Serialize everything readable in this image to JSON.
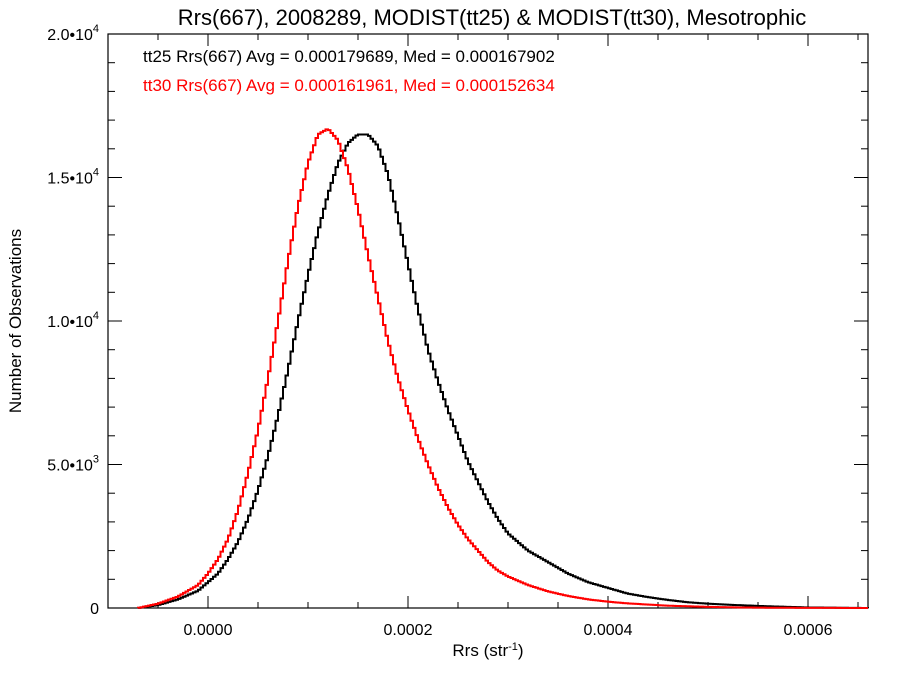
{
  "chart_data": {
    "type": "line",
    "title": "Rrs(667), 2008289, MODIST(tt25) & MODIST(tt30), Mesotrophic",
    "xlabel": "Rrs (str",
    "xlabel_sup": "-1",
    "xlabel_suffix": ")",
    "ylabel": "Number of Observations",
    "xlim": [
      -0.0001,
      0.00066
    ],
    "ylim": [
      0,
      20000
    ],
    "x_ticks": [
      {
        "value": 0.0,
        "label": "0.0000"
      },
      {
        "value": 0.0002,
        "label": "0.0002"
      },
      {
        "value": 0.0004,
        "label": "0.0004"
      },
      {
        "value": 0.0006,
        "label": "0.0006"
      }
    ],
    "y_ticks": [
      {
        "value": 0,
        "mant": "0",
        "sup": ""
      },
      {
        "value": 5000,
        "mant": "5.0•10",
        "sup": "3"
      },
      {
        "value": 10000,
        "mant": "1.0•10",
        "sup": "4"
      },
      {
        "value": 15000,
        "mant": "1.5•10",
        "sup": "4"
      },
      {
        "value": 20000,
        "mant": "2.0•10",
        "sup": "4"
      }
    ],
    "grid": false,
    "series": [
      {
        "name": "tt25",
        "color": "#000000",
        "annotation": "tt25 Rrs(667) Avg = 0.000179689, Med = 0.000167902",
        "x": [
          -7e-05,
          -5e-05,
          -3e-05,
          -1e-05,
          0.0,
          1e-05,
          2e-05,
          3e-05,
          4e-05,
          5e-05,
          6e-05,
          7e-05,
          8e-05,
          9e-05,
          0.0001,
          0.00011,
          0.00012,
          0.00013,
          0.00014,
          0.00015,
          0.00016,
          0.00017,
          0.00018,
          0.00019,
          0.0002,
          0.00021,
          0.00022,
          0.00023,
          0.00024,
          0.00025,
          0.00026,
          0.00027,
          0.00028,
          0.00029,
          0.0003,
          0.00032,
          0.00034,
          0.00036,
          0.00038,
          0.0004,
          0.00042,
          0.00044,
          0.00046,
          0.00048,
          0.0005,
          0.00053,
          0.00056,
          0.0006,
          0.00066
        ],
        "y": [
          0,
          100,
          300,
          600,
          900,
          1200,
          1700,
          2300,
          3100,
          4100,
          5300,
          6700,
          8300,
          10000,
          11600,
          13100,
          14400,
          15500,
          16200,
          16500,
          16500,
          16100,
          15100,
          13600,
          12000,
          10400,
          9000,
          7900,
          6900,
          6000,
          5100,
          4400,
          3700,
          3100,
          2600,
          2000,
          1600,
          1200,
          900,
          700,
          500,
          380,
          280,
          200,
          150,
          100,
          60,
          20,
          0
        ]
      },
      {
        "name": "tt30",
        "color": "#ff0000",
        "annotation": "tt30 Rrs(667) Avg = 0.000161961, Med = 0.000152634",
        "x": [
          -7e-05,
          -5e-05,
          -3e-05,
          -1e-05,
          0.0,
          1e-05,
          2e-05,
          3e-05,
          4e-05,
          5e-05,
          6e-05,
          7e-05,
          8e-05,
          9e-05,
          0.0001,
          0.00011,
          0.00012,
          0.00013,
          0.00014,
          0.00015,
          0.00016,
          0.00017,
          0.00018,
          0.00019,
          0.0002,
          0.00021,
          0.00022,
          0.00023,
          0.00024,
          0.00025,
          0.00026,
          0.00027,
          0.00028,
          0.00029,
          0.0003,
          0.00032,
          0.00034,
          0.00036,
          0.00038,
          0.0004,
          0.00042,
          0.00044,
          0.00046,
          0.00048,
          0.0005,
          0.00053,
          0.00056,
          0.0006,
          0.00066
        ],
        "y": [
          0,
          150,
          400,
          800,
          1200,
          1700,
          2400,
          3400,
          4700,
          6200,
          8000,
          10000,
          12100,
          14000,
          15500,
          16500,
          16700,
          16300,
          15300,
          13900,
          12300,
          10800,
          9300,
          8000,
          6900,
          5900,
          5000,
          4200,
          3500,
          2900,
          2400,
          2000,
          1600,
          1300,
          1100,
          800,
          580,
          420,
          300,
          220,
          160,
          120,
          80,
          60,
          40,
          20,
          10,
          5,
          0
        ]
      }
    ]
  }
}
